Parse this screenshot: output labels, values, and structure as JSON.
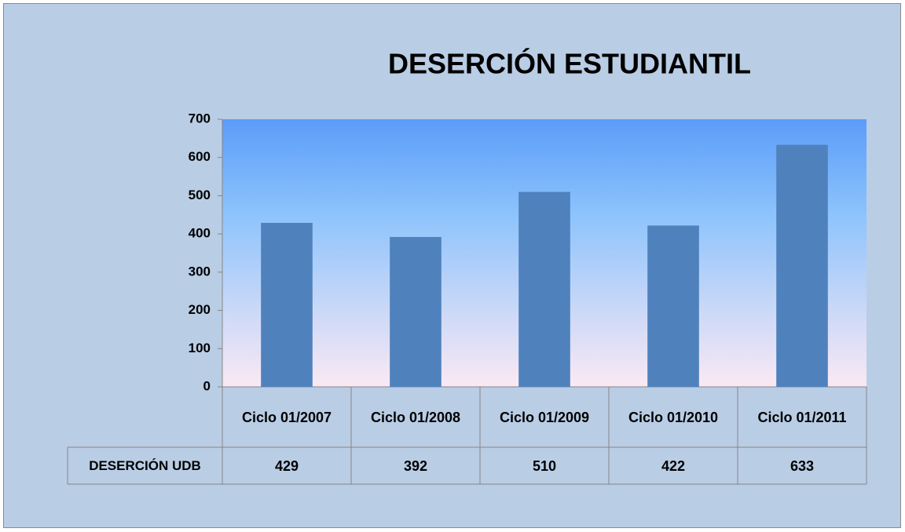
{
  "chart_data": {
    "type": "bar",
    "title": "DESERCIÓN ESTUDIANTIL",
    "categories": [
      "Ciclo 01/2007",
      "Ciclo 01/2008",
      "Ciclo 01/2009",
      "Ciclo 01/2010",
      "Ciclo 01/2011"
    ],
    "series": [
      {
        "name": "DESERCIÓN UDB",
        "color": "#4f81bd",
        "values": [
          429,
          392,
          510,
          422,
          633
        ]
      }
    ],
    "ylim": [
      0,
      700
    ],
    "yticks": [
      0,
      100,
      200,
      300,
      400,
      500,
      600,
      700
    ]
  }
}
